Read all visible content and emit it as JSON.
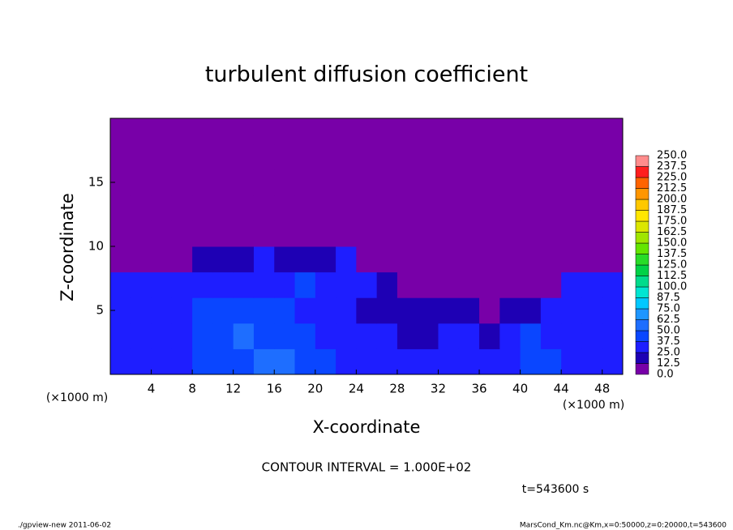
{
  "chart_data": {
    "type": "heatmap",
    "title": "turbulent diffusion coefficient",
    "x_label": "X-coordinate",
    "y_label": "Z-coordinate",
    "x_unit": "(×1000 m)",
    "y_unit": "(×1000 m)",
    "annotation": "CONTOUR INTERVAL = 1.000E+02",
    "time_label": "t=543600 s",
    "footer_left": "./gpview-new  2011-06-02",
    "footer_right": "MarsCond_Km.nc@Km,x=0:50000,z=0:20000,t=543600",
    "xlim": [
      0,
      50
    ],
    "ylim": [
      0,
      20
    ],
    "xticks": [
      4,
      8,
      12,
      16,
      20,
      24,
      28,
      32,
      36,
      40,
      44,
      48
    ],
    "yticks": [
      5,
      10,
      15
    ],
    "x": [
      1,
      3,
      5,
      7,
      9,
      11,
      13,
      15,
      17,
      19,
      21,
      23,
      25,
      27,
      29,
      31,
      33,
      35,
      37,
      39,
      41,
      43,
      45,
      47,
      49
    ],
    "z": [
      1,
      3,
      5,
      7,
      9,
      11,
      13,
      15,
      17,
      19
    ],
    "values": [
      [
        35,
        35,
        30,
        35,
        40,
        45,
        40,
        50,
        55,
        45,
        40,
        30,
        35,
        30,
        30,
        25,
        30,
        35,
        35,
        30,
        40,
        45,
        35,
        30,
        30
      ],
      [
        30,
        30,
        35,
        35,
        40,
        45,
        50,
        45,
        40,
        45,
        35,
        30,
        30,
        25,
        20,
        20,
        25,
        25,
        20,
        30,
        40,
        35,
        30,
        25,
        30
      ],
      [
        30,
        30,
        30,
        35,
        40,
        40,
        45,
        40,
        45,
        35,
        30,
        25,
        20,
        15,
        15,
        20,
        15,
        15,
        10,
        15,
        20,
        25,
        30,
        30,
        35
      ],
      [
        25,
        25,
        25,
        30,
        35,
        30,
        35,
        30,
        35,
        40,
        30,
        35,
        25,
        15,
        10,
        10,
        5,
        10,
        5,
        0,
        0,
        5,
        25,
        25,
        30
      ],
      [
        0,
        0,
        0,
        0,
        15,
        20,
        20,
        25,
        20,
        20,
        20,
        25,
        0,
        0,
        0,
        0,
        0,
        0,
        0,
        0,
        0,
        0,
        0,
        0,
        0
      ],
      [
        0,
        0,
        0,
        0,
        0,
        0,
        0,
        0,
        0,
        0,
        0,
        0,
        0,
        0,
        0,
        0,
        0,
        0,
        0,
        0,
        0,
        0,
        0,
        0,
        0
      ],
      [
        0,
        0,
        0,
        0,
        0,
        0,
        0,
        0,
        0,
        0,
        0,
        0,
        0,
        0,
        0,
        0,
        0,
        0,
        0,
        0,
        0,
        0,
        0,
        0,
        0
      ],
      [
        0,
        0,
        0,
        0,
        0,
        0,
        0,
        0,
        0,
        0,
        0,
        0,
        0,
        0,
        0,
        0,
        0,
        0,
        0,
        0,
        0,
        0,
        0,
        0,
        0
      ],
      [
        0,
        0,
        0,
        0,
        0,
        0,
        0,
        0,
        0,
        0,
        0,
        0,
        0,
        0,
        0,
        0,
        0,
        0,
        0,
        0,
        0,
        0,
        0,
        0,
        0
      ],
      [
        0,
        0,
        0,
        0,
        0,
        0,
        0,
        0,
        0,
        0,
        0,
        0,
        0,
        0,
        0,
        0,
        0,
        0,
        0,
        0,
        0,
        0,
        0,
        0,
        0
      ]
    ],
    "levels": [
      {
        "value": 0,
        "label": "0.0"
      },
      12.5,
      {
        "value": 25,
        "label": "25.0"
      },
      37.5,
      {
        "value": 50,
        "label": "50.0"
      },
      62.5,
      {
        "value": 75,
        "label": "75.0"
      },
      87.5,
      {
        "value": 100,
        "label": "100.0"
      },
      112.5,
      {
        "value": 125,
        "label": "125.0"
      },
      137.5,
      {
        "value": 150,
        "label": "150.0"
      },
      162.5,
      {
        "value": 175,
        "label": "175.0"
      },
      187.5,
      {
        "value": 200,
        "label": "200.0"
      },
      212.5,
      {
        "value": 225,
        "label": "225.0"
      },
      237.5,
      {
        "value": 250,
        "label": "250.0"
      }
    ],
    "colors": [
      "#7800a8",
      "#1e00b4",
      "#1e1eff",
      "#0a46ff",
      "#1e6eff",
      "#1e96ff",
      "#00c8ff",
      "#00e6d2",
      "#00dc8c",
      "#00d246",
      "#28dc28",
      "#64e600",
      "#a0e600",
      "#dce600",
      "#ffe600",
      "#ffc800",
      "#ff9600",
      "#ff6400",
      "#ff1e1e",
      "#ff8c8c"
    ]
  }
}
